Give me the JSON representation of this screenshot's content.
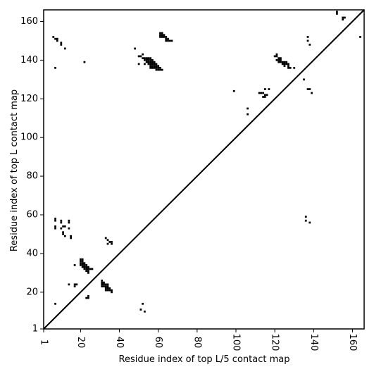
{
  "chart_data": {
    "type": "heatmap",
    "title": "",
    "xlabel": "Residue index of top L/5 contact map",
    "ylabel": "Residue index of top L contact map",
    "xlim": [
      1,
      166
    ],
    "ylim": [
      1,
      166
    ],
    "x_ticks": [
      1,
      20,
      40,
      60,
      80,
      100,
      120,
      140,
      160
    ],
    "y_ticks": [
      1,
      20,
      40,
      60,
      80,
      100,
      120,
      140,
      160
    ],
    "x_tick_labels": [
      "1",
      "20",
      "40",
      "60",
      "80",
      "100",
      "120",
      "140",
      "160"
    ],
    "y_tick_labels": [
      "1",
      "20",
      "40",
      "60",
      "80",
      "100",
      "120",
      "140",
      "160"
    ],
    "diagonal": true,
    "grid": false,
    "cell_color": "#000000",
    "points": [
      [
        6,
        152
      ],
      [
        7,
        151
      ],
      [
        8,
        150
      ],
      [
        8,
        151
      ],
      [
        10,
        148
      ],
      [
        10,
        149
      ],
      [
        12,
        146
      ],
      [
        7,
        136
      ],
      [
        22,
        139
      ],
      [
        48,
        146
      ],
      [
        50,
        142
      ],
      [
        51,
        142
      ],
      [
        52,
        143
      ],
      [
        52,
        141
      ],
      [
        50,
        138
      ],
      [
        53,
        138
      ],
      [
        53,
        141
      ],
      [
        54,
        141
      ],
      [
        55,
        141
      ],
      [
        56,
        141
      ],
      [
        53,
        140
      ],
      [
        54,
        140
      ],
      [
        55,
        140
      ],
      [
        56,
        140
      ],
      [
        57,
        140
      ],
      [
        54,
        139
      ],
      [
        55,
        139
      ],
      [
        56,
        139
      ],
      [
        57,
        139
      ],
      [
        58,
        139
      ],
      [
        55,
        138
      ],
      [
        56,
        138
      ],
      [
        57,
        138
      ],
      [
        58,
        138
      ],
      [
        59,
        138
      ],
      [
        56,
        137
      ],
      [
        57,
        137
      ],
      [
        58,
        137
      ],
      [
        59,
        137
      ],
      [
        60,
        137
      ],
      [
        56,
        136
      ],
      [
        57,
        136
      ],
      [
        58,
        136
      ],
      [
        59,
        136
      ],
      [
        60,
        136
      ],
      [
        61,
        136
      ],
      [
        59,
        135
      ],
      [
        60,
        135
      ],
      [
        61,
        135
      ],
      [
        62,
        135
      ],
      [
        61,
        154
      ],
      [
        62,
        154
      ],
      [
        61,
        153
      ],
      [
        62,
        153
      ],
      [
        63,
        153
      ],
      [
        61,
        152
      ],
      [
        62,
        152
      ],
      [
        63,
        152
      ],
      [
        64,
        152
      ],
      [
        64,
        151
      ],
      [
        65,
        151
      ],
      [
        64,
        150
      ],
      [
        65,
        150
      ],
      [
        66,
        150
      ],
      [
        67,
        150
      ],
      [
        99,
        124
      ],
      [
        106,
        115
      ],
      [
        106,
        112
      ],
      [
        112,
        123
      ],
      [
        113,
        123
      ],
      [
        114,
        123
      ],
      [
        115,
        122
      ],
      [
        116,
        122
      ],
      [
        114,
        121
      ],
      [
        115,
        121
      ],
      [
        115,
        125
      ],
      [
        117,
        125
      ],
      [
        120,
        142
      ],
      [
        121,
        143
      ],
      [
        121,
        142
      ],
      [
        122,
        141
      ],
      [
        123,
        141
      ],
      [
        121,
        140
      ],
      [
        122,
        140
      ],
      [
        123,
        140
      ],
      [
        122,
        139
      ],
      [
        123,
        139
      ],
      [
        124,
        139
      ],
      [
        125,
        139
      ],
      [
        126,
        139
      ],
      [
        124,
        138
      ],
      [
        125,
        138
      ],
      [
        126,
        138
      ],
      [
        127,
        138
      ],
      [
        125,
        137
      ],
      [
        127,
        137
      ],
      [
        127,
        136
      ],
      [
        128,
        136
      ],
      [
        130,
        136
      ],
      [
        135,
        130
      ],
      [
        137,
        152
      ],
      [
        137,
        150
      ],
      [
        138,
        148
      ],
      [
        137,
        125
      ],
      [
        138,
        125
      ],
      [
        139,
        123
      ],
      [
        136,
        59
      ],
      [
        136,
        57
      ],
      [
        138,
        56
      ],
      [
        152,
        165
      ],
      [
        152,
        164
      ],
      [
        155,
        162
      ],
      [
        156,
        162
      ],
      [
        155,
        161
      ],
      [
        164,
        152
      ],
      [
        7,
        58
      ],
      [
        7,
        57
      ],
      [
        7,
        54
      ],
      [
        7,
        53
      ],
      [
        10,
        57
      ],
      [
        10,
        56
      ],
      [
        11,
        54
      ],
      [
        12,
        54
      ],
      [
        10,
        53
      ],
      [
        11,
        51
      ],
      [
        11,
        50
      ],
      [
        12,
        49
      ],
      [
        14,
        57
      ],
      [
        14,
        56
      ],
      [
        14,
        53
      ],
      [
        15,
        49
      ],
      [
        15,
        48
      ],
      [
        14,
        24
      ],
      [
        17,
        34
      ],
      [
        17,
        24
      ],
      [
        17,
        23
      ],
      [
        18,
        24
      ],
      [
        20,
        37
      ],
      [
        21,
        37
      ],
      [
        20,
        36
      ],
      [
        21,
        36
      ],
      [
        20,
        35
      ],
      [
        21,
        35
      ],
      [
        22,
        35
      ],
      [
        20,
        34
      ],
      [
        21,
        34
      ],
      [
        22,
        34
      ],
      [
        23,
        34
      ],
      [
        21,
        33
      ],
      [
        22,
        33
      ],
      [
        23,
        33
      ],
      [
        24,
        33
      ],
      [
        22,
        32
      ],
      [
        23,
        32
      ],
      [
        24,
        32
      ],
      [
        25,
        32
      ],
      [
        26,
        32
      ],
      [
        23,
        31
      ],
      [
        24,
        31
      ],
      [
        24,
        30
      ],
      [
        23,
        17
      ],
      [
        24,
        17
      ],
      [
        24,
        18
      ],
      [
        31,
        26
      ],
      [
        31,
        25
      ],
      [
        32,
        25
      ],
      [
        31,
        24
      ],
      [
        32,
        24
      ],
      [
        33,
        24
      ],
      [
        34,
        24
      ],
      [
        31,
        23
      ],
      [
        32,
        23
      ],
      [
        33,
        23
      ],
      [
        34,
        23
      ],
      [
        33,
        22
      ],
      [
        34,
        22
      ],
      [
        35,
        22
      ],
      [
        33,
        21
      ],
      [
        34,
        21
      ],
      [
        35,
        21
      ],
      [
        36,
        21
      ],
      [
        36,
        20
      ],
      [
        33,
        48
      ],
      [
        34,
        47
      ],
      [
        35,
        46
      ],
      [
        36,
        46
      ],
      [
        36,
        45
      ],
      [
        34,
        45
      ],
      [
        7,
        14
      ],
      [
        51,
        11
      ],
      [
        52,
        14
      ],
      [
        53,
        10
      ]
    ]
  }
}
